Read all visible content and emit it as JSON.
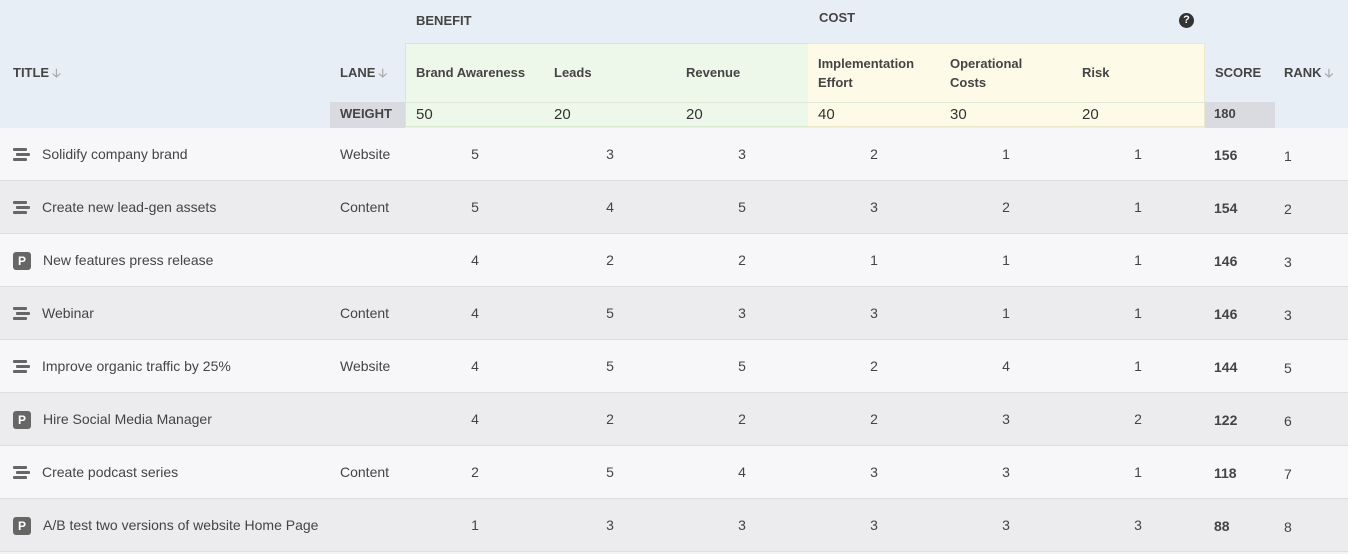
{
  "groups": {
    "benefit": "BENEFIT",
    "cost": "COST"
  },
  "columns": {
    "title": "TITLE",
    "lane": "LANE",
    "score": "SCORE",
    "rank": "RANK",
    "brand_awareness": "Brand Awareness",
    "leads": "Leads",
    "revenue": "Revenue",
    "impl_line1": "Implementation",
    "impl_line2": "Effort",
    "op_line1": "Operational",
    "op_line2": "Costs",
    "risk": "Risk"
  },
  "weight": {
    "label": "WEIGHT",
    "values": [
      "50",
      "20",
      "20",
      "40",
      "30",
      "20"
    ],
    "total": "180"
  },
  "rows": [
    {
      "icon": "bars",
      "title": "Solidify company brand",
      "lane": "Website",
      "scores": [
        "5",
        "3",
        "3",
        "2",
        "1",
        "1"
      ],
      "score": "156",
      "rank": "1"
    },
    {
      "icon": "bars",
      "title": "Create new lead-gen assets",
      "lane": "Content",
      "scores": [
        "5",
        "4",
        "5",
        "3",
        "2",
        "1"
      ],
      "score": "154",
      "rank": "2"
    },
    {
      "icon": "p",
      "icon_letter": "P",
      "title": "New features press release",
      "lane": "",
      "scores": [
        "4",
        "2",
        "2",
        "1",
        "1",
        "1"
      ],
      "score": "146",
      "rank": "3"
    },
    {
      "icon": "bars",
      "title": "Webinar",
      "lane": "Content",
      "scores": [
        "4",
        "5",
        "3",
        "3",
        "1",
        "1"
      ],
      "score": "146",
      "rank": "3"
    },
    {
      "icon": "bars",
      "title": "Improve organic traffic by 25%",
      "lane": "Website",
      "scores": [
        "4",
        "5",
        "5",
        "2",
        "4",
        "1"
      ],
      "score": "144",
      "rank": "5"
    },
    {
      "icon": "p",
      "icon_letter": "P",
      "title": "Hire Social Media Manager",
      "lane": "",
      "scores": [
        "4",
        "2",
        "2",
        "2",
        "3",
        "2"
      ],
      "score": "122",
      "rank": "6"
    },
    {
      "icon": "bars",
      "title": "Create podcast series",
      "lane": "Content",
      "scores": [
        "2",
        "5",
        "4",
        "3",
        "3",
        "1"
      ],
      "score": "118",
      "rank": "7"
    },
    {
      "icon": "p",
      "icon_letter": "P",
      "title": "A/B test two versions of website Home Page",
      "lane": "",
      "scores": [
        "1",
        "3",
        "3",
        "3",
        "3",
        "3"
      ],
      "score": "88",
      "rank": "8"
    }
  ],
  "help_glyph": "?",
  "sort_glyph": "🡣",
  "colors": {
    "link": "#4a7ec0",
    "benefit_bg": "#eef8ea",
    "cost_bg": "#fdfbe8"
  }
}
